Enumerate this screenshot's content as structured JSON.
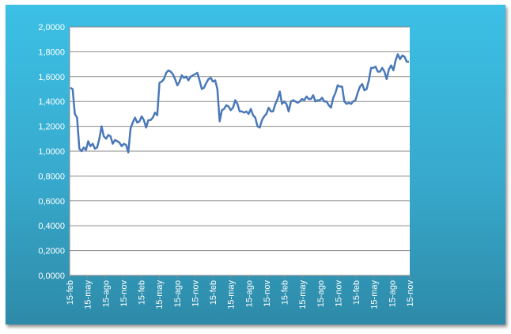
{
  "chart_data": {
    "type": "line",
    "title": "",
    "xlabel": "",
    "ylabel": "",
    "ylim": [
      0,
      2
    ],
    "yticks": [
      "0,0000",
      "0,2000",
      "0,4000",
      "0,6000",
      "0,8000",
      "1,0000",
      "1,2000",
      "1,4000",
      "1,6000",
      "1,8000",
      "2,0000"
    ],
    "ytick_values": [
      0,
      0.2,
      0.4,
      0.6,
      0.8,
      1.0,
      1.2,
      1.4,
      1.6,
      1.8,
      2.0
    ],
    "xticks": [
      "15-feb",
      "15-may",
      "15-ago",
      "15-nov",
      "15-feb",
      "15-may",
      "15-ago",
      "15-nov",
      "15-feb",
      "15-may",
      "15-ago",
      "15-nov",
      "15-feb",
      "15-may",
      "15-ago",
      "15-nov",
      "15-feb",
      "15-may",
      "15-ago",
      "15-nov"
    ],
    "grid": true,
    "line_color": "#4a78b8",
    "series": [
      {
        "values": [
          1.51,
          1.5,
          1.3,
          1.27,
          1.02,
          1.0,
          1.03,
          1.01,
          1.08,
          1.04,
          1.06,
          1.02,
          1.03,
          1.1,
          1.2,
          1.12,
          1.1,
          1.13,
          1.12,
          1.06,
          1.09,
          1.08,
          1.07,
          1.04,
          1.06,
          1.05,
          0.99,
          1.18,
          1.23,
          1.27,
          1.23,
          1.24,
          1.28,
          1.25,
          1.19,
          1.25,
          1.25,
          1.27,
          1.31,
          1.29,
          1.55,
          1.56,
          1.58,
          1.63,
          1.65,
          1.64,
          1.62,
          1.58,
          1.53,
          1.56,
          1.61,
          1.59,
          1.6,
          1.57,
          1.6,
          1.61,
          1.62,
          1.63,
          1.57,
          1.5,
          1.51,
          1.55,
          1.58,
          1.59,
          1.56,
          1.57,
          1.5,
          1.24,
          1.33,
          1.34,
          1.37,
          1.36,
          1.33,
          1.35,
          1.41,
          1.38,
          1.32,
          1.32,
          1.31,
          1.32,
          1.3,
          1.34,
          1.29,
          1.27,
          1.2,
          1.19,
          1.25,
          1.28,
          1.3,
          1.35,
          1.32,
          1.32,
          1.38,
          1.42,
          1.48,
          1.38,
          1.4,
          1.38,
          1.32,
          1.4,
          1.41,
          1.4,
          1.39,
          1.4,
          1.42,
          1.41,
          1.44,
          1.42,
          1.42,
          1.45,
          1.4,
          1.41,
          1.41,
          1.43,
          1.4,
          1.4,
          1.37,
          1.35,
          1.43,
          1.47,
          1.53,
          1.52,
          1.52,
          1.4,
          1.38,
          1.39,
          1.38,
          1.4,
          1.41,
          1.47,
          1.52,
          1.54,
          1.49,
          1.5,
          1.57,
          1.67,
          1.67,
          1.68,
          1.64,
          1.64,
          1.67,
          1.64,
          1.58,
          1.66,
          1.69,
          1.65,
          1.73,
          1.78,
          1.74,
          1.77,
          1.76,
          1.72,
          1.72
        ]
      }
    ]
  }
}
